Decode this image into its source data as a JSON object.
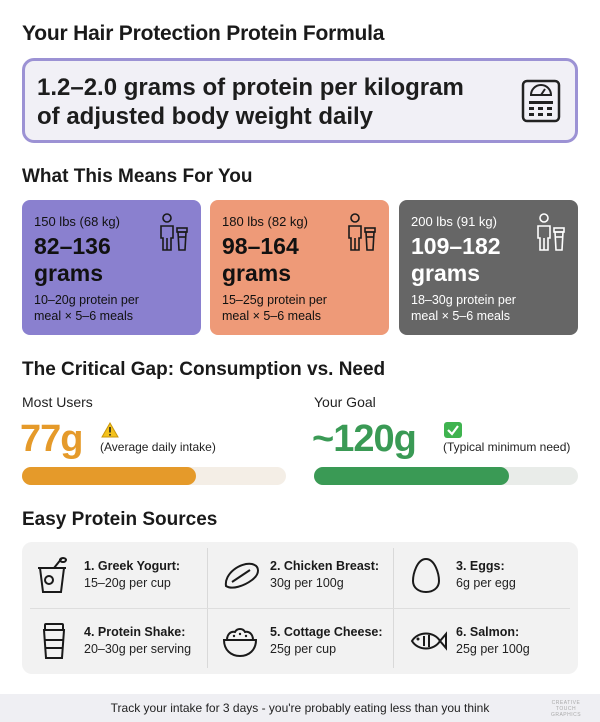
{
  "header": {
    "title": "Your Hair Protection Protein Formula"
  },
  "formula": {
    "line1": "1.2–2.0 grams of protein per kilogram",
    "line2": "of adjusted body weight daily",
    "icon": "scale-icon"
  },
  "means": {
    "title": "What This Means For You",
    "cards": [
      {
        "weight": "150 lbs (68 kg)",
        "grams_line1": "82–136",
        "grams_line2": "grams",
        "note_line1": "10–20g protein per",
        "note_line2": "meal × 5–6 meals",
        "color": "#8a80cf"
      },
      {
        "weight": "180 lbs (82 kg)",
        "grams_line1": "98–164",
        "grams_line2": "grams",
        "note_line1": "15–25g protein per",
        "note_line2": "meal × 5–6 meals",
        "color": "#ee9a78"
      },
      {
        "weight": "200 lbs (91 kg)",
        "grams_line1": "109–182",
        "grams_line2": "grams",
        "note_line1": "18–30g protein per",
        "note_line2": "meal × 5–6 meals",
        "color": "#666666"
      }
    ]
  },
  "gap": {
    "title": "The Critical Gap: Consumption vs. Need",
    "users": {
      "label": "Most Users",
      "value": "77g",
      "note": "(Average daily intake)",
      "icon": "warning-icon",
      "fill_fraction": 0.66,
      "color": "#e59a2a"
    },
    "goal": {
      "label": "Your Goal",
      "value": "~120g",
      "note": "(Typical minimum need)",
      "icon": "check-icon",
      "fill_fraction": 0.74,
      "color": "#3a9a55"
    }
  },
  "sources": {
    "title": "Easy Protein Sources",
    "items": [
      {
        "title": "1. Greek Yogurt:",
        "amount": "15–20g per cup",
        "icon": "yogurt-icon"
      },
      {
        "title": "2. Chicken Breast:",
        "amount": "30g per 100g",
        "icon": "chicken-icon"
      },
      {
        "title": "3. Eggs:",
        "amount": "6g per egg",
        "icon": "egg-icon"
      },
      {
        "title": "4. Protein Shake:",
        "amount": "20–30g per serving",
        "icon": "shaker-icon"
      },
      {
        "title": "5. Cottage Cheese:",
        "amount": "25g per cup",
        "icon": "bowl-icon"
      },
      {
        "title": "6. Salmon:",
        "amount": "25g per 100g",
        "icon": "fish-icon"
      }
    ]
  },
  "footer": {
    "text": "Track your intake for 3 days - you're probably eating less than you think",
    "logo_line1": "CREATIVE TOUCH",
    "logo_line2": "GRAPHICS"
  }
}
